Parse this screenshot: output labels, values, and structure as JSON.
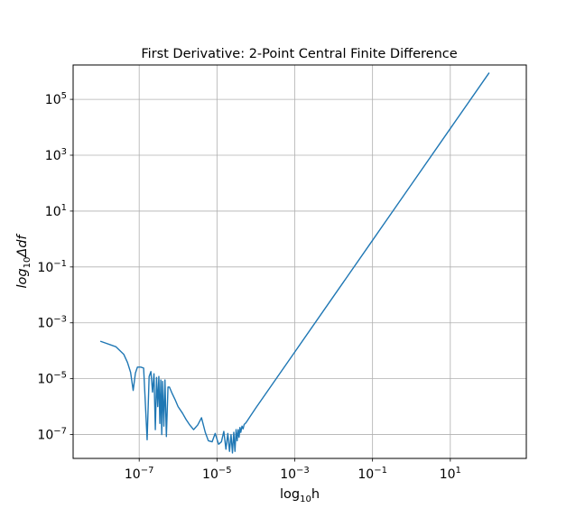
{
  "chart_data": {
    "type": "line",
    "title": "First Derivative: 2-Point Central Finite Difference",
    "xlabel": {
      "base": "log",
      "sub": "10",
      "rest": "h"
    },
    "ylabel": {
      "base": "log",
      "sub": "10",
      "rest": "Δdf"
    },
    "x_scale": "log",
    "y_scale": "log",
    "xlim": [
      2e-09,
      900
    ],
    "ylim": [
      1.4e-08,
      1700000.0
    ],
    "grid": true,
    "legend": "none",
    "line_color": "#1f77b4",
    "x_ticks": [
      {
        "base": "10",
        "exp": "−7",
        "value": 1e-07
      },
      {
        "base": "10",
        "exp": "−5",
        "value": 1e-05
      },
      {
        "base": "10",
        "exp": "−3",
        "value": 0.001
      },
      {
        "base": "10",
        "exp": "−1",
        "value": 0.1
      },
      {
        "base": "10",
        "exp": "1",
        "value": 10
      }
    ],
    "y_ticks": [
      {
        "base": "10",
        "exp": "5",
        "value": 100000.0
      },
      {
        "base": "10",
        "exp": "3",
        "value": 1000.0
      },
      {
        "base": "10",
        "exp": "1",
        "value": 10
      },
      {
        "base": "10",
        "exp": "−1",
        "value": 0.1
      },
      {
        "base": "10",
        "exp": "−3",
        "value": 0.001
      },
      {
        "base": "10",
        "exp": "−5",
        "value": 1e-05
      },
      {
        "base": "10",
        "exp": "−7",
        "value": 1e-07
      }
    ],
    "series": [
      {
        "x": [
          1e-08,
          2.5e-08,
          4e-08,
          5e-08,
          6e-08,
          7e-08,
          8e-08,
          9e-08,
          1.1e-07,
          1.3e-07,
          1.6e-07,
          1.8e-07,
          2e-07,
          2.2e-07,
          2.4e-07,
          2.6e-07,
          2.8e-07,
          3e-07,
          3.2e-07,
          3.4e-07,
          3.6e-07,
          3.8e-07,
          4e-07,
          4.3e-07,
          4.6e-07,
          5e-07,
          5.5e-07,
          6e-07,
          7e-07,
          8.5e-07,
          1e-06,
          1.3e-06,
          1.6e-06,
          2e-06,
          2.5e-06,
          3.2e-06,
          4e-06,
          5e-06,
          6e-06,
          7.5e-06,
          9e-06,
          1.1e-05,
          1.3e-05,
          1.5e-05,
          1.7e-05,
          1.9e-05,
          2.1e-05,
          2.3e-05,
          2.5e-05,
          2.7e-05,
          2.9e-05,
          3.1e-05,
          3.3e-05,
          3.5e-05,
          3.7e-05,
          3.9e-05,
          4.1e-05,
          4.4e-05,
          4.7e-05,
          5e-05,
          5.5e-05,
          6e-05,
          7e-05,
          0.0001,
          0.001,
          0.01,
          0.1,
          1,
          10,
          100
        ],
        "y": [
          0.00022,
          0.00014,
          7.5e-05,
          3.8e-05,
          1.7e-05,
          3.8e-06,
          1.6e-05,
          2.6e-05,
          2.6e-05,
          2.4e-05,
          6.5e-08,
          1.2e-05,
          1.8e-05,
          3.3e-06,
          1.5e-05,
          1.5e-07,
          1.1e-05,
          1e-06,
          1.2e-05,
          2.5e-07,
          9e-06,
          1e-07,
          8e-06,
          2e-07,
          9e-06,
          8.5e-08,
          5e-06,
          5e-06,
          3e-06,
          1.7e-06,
          1e-06,
          5.8e-07,
          3.5e-07,
          2.2e-07,
          1.5e-07,
          2.2e-07,
          4e-07,
          1.2e-07,
          6e-08,
          5.5e-08,
          1.1e-07,
          4.5e-08,
          5.5e-08,
          1.3e-07,
          3e-08,
          1.1e-07,
          2.5e-08,
          1e-07,
          2.2e-08,
          1.2e-07,
          2.5e-08,
          1.5e-07,
          6e-08,
          1.5e-07,
          8e-08,
          1.8e-07,
          1.2e-07,
          2e-07,
          1.6e-07,
          2.3e-07,
          2.6e-07,
          3.1e-07,
          4.3e-07,
          9e-07,
          9e-05,
          0.009,
          0.9,
          90,
          9000,
          900000.0
        ]
      }
    ]
  }
}
